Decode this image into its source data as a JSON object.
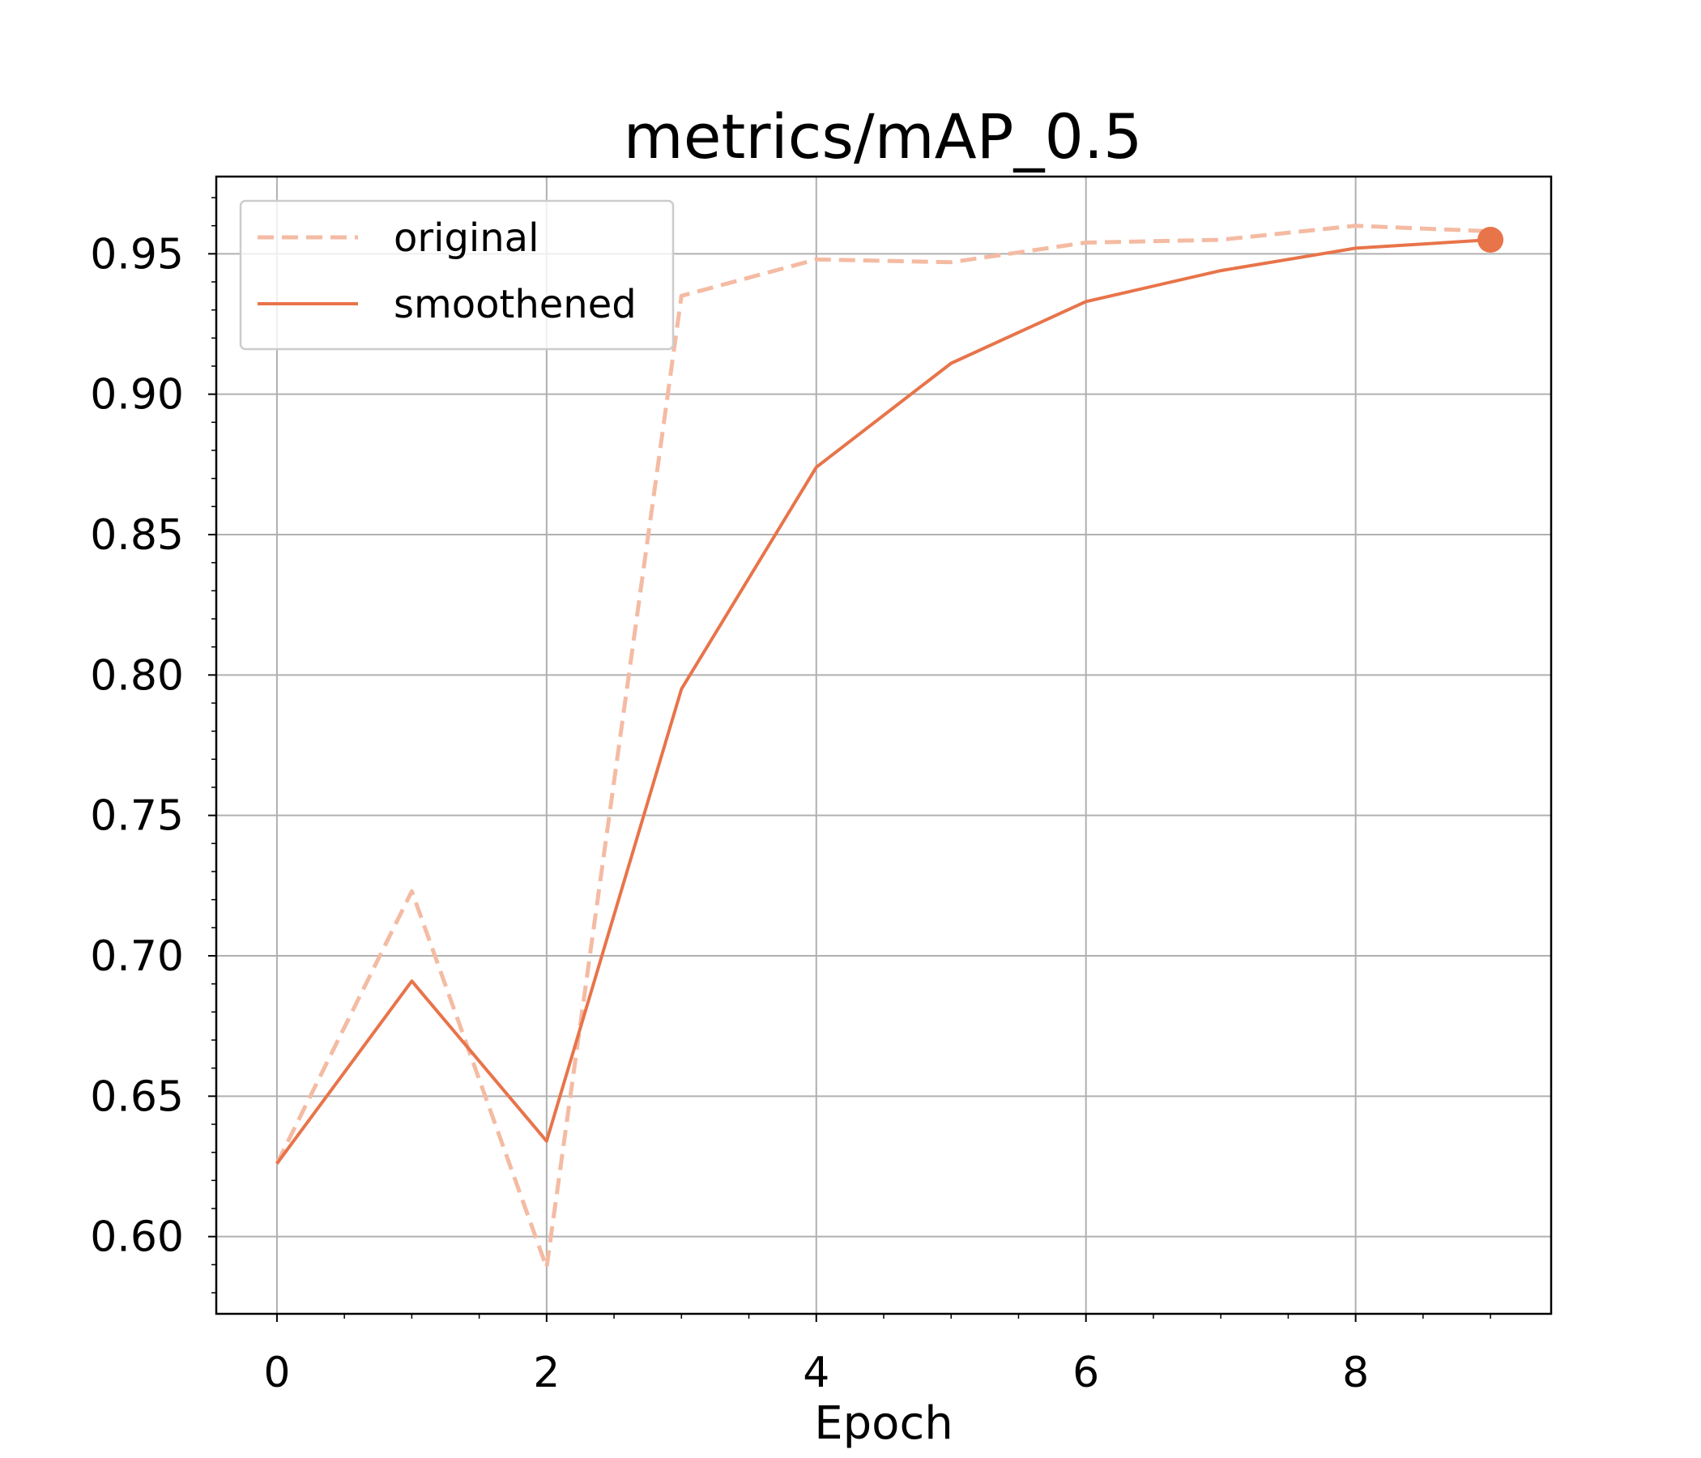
{
  "chart_data": {
    "type": "line",
    "title": "metrics/mAP_0.5",
    "xlabel": "Epoch",
    "ylabel": "",
    "xlim": [
      -0.45,
      9.45
    ],
    "ylim": [
      0.5725,
      0.9775
    ],
    "x_ticks": [
      0,
      2,
      4,
      6,
      8
    ],
    "x_tick_labels": [
      "0",
      "2",
      "4",
      "6",
      "8"
    ],
    "y_ticks": [
      0.6,
      0.65,
      0.7,
      0.75,
      0.8,
      0.85,
      0.9,
      0.95
    ],
    "y_tick_labels": [
      "0.60",
      "0.65",
      "0.70",
      "0.75",
      "0.80",
      "0.85",
      "0.90",
      "0.95"
    ],
    "grid": true,
    "legend_position": "top-left",
    "x": [
      0,
      1,
      2,
      3,
      4,
      5,
      6,
      7,
      8,
      9
    ],
    "series": [
      {
        "name": "original",
        "style": "dashed",
        "color": "#f4bba3",
        "values": [
          0.626,
          0.723,
          0.589,
          0.935,
          0.948,
          0.947,
          0.954,
          0.955,
          0.96,
          0.958
        ]
      },
      {
        "name": "smoothened",
        "style": "solid",
        "color": "#e8744a",
        "values": [
          0.626,
          0.691,
          0.634,
          0.795,
          0.874,
          0.911,
          0.933,
          0.944,
          0.952,
          0.955
        ],
        "end_marker": true
      }
    ]
  }
}
